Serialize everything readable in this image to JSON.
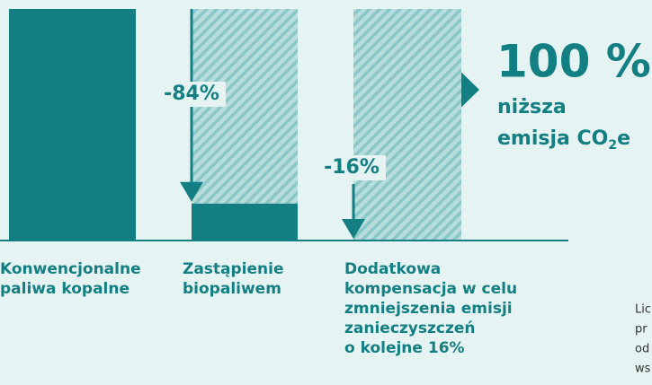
{
  "chart_data": {
    "type": "bar",
    "categories": [
      [
        "Konwencjonalne",
        "paliwa kopalne"
      ],
      [
        "Zastąpienie",
        "biopaliwem"
      ],
      [
        "Dodatkowa",
        "kompensacja w celu",
        "zmniejszenia emisji",
        "zanieczyszczeń",
        "o kolejne 16%"
      ]
    ],
    "series": [
      {
        "color": "#137f82",
        "values": [
          100,
          16,
          0
        ]
      },
      {
        "color": "#8cc7c8",
        "pattern": "hatched",
        "values": [
          0,
          84,
          100
        ]
      }
    ],
    "reductions": [
      {
        "value": -84,
        "label": "-84%"
      },
      {
        "value": -16,
        "label": "-16%"
      }
    ],
    "headline": {
      "value": 100,
      "label": "100 %"
    },
    "subtitle": {
      "line1": "niższa",
      "text": "emisja CO",
      "sub": "2",
      "after": "e"
    },
    "side_note": [
      "Lic",
      "pr",
      "od",
      "ws"
    ],
    "ylim": [
      0,
      100
    ]
  }
}
